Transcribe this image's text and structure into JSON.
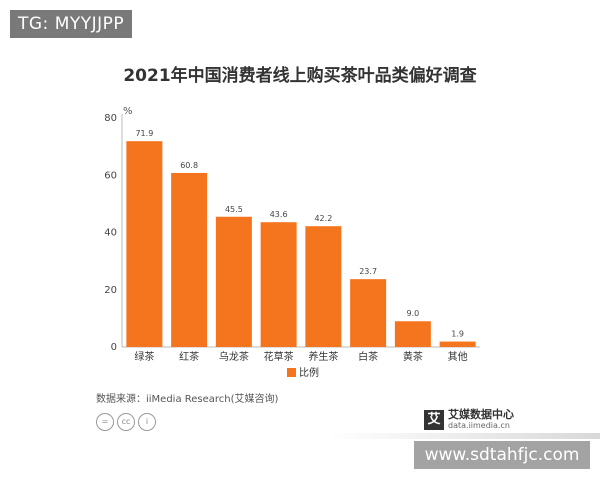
{
  "watermarks": {
    "top_left": "TG: MYYJJPP",
    "bottom_right": "www.sdtahfjc.com"
  },
  "chart_data": {
    "type": "bar",
    "title": "2021年中国消费者线上购买茶叶品类偏好调查",
    "ylabel": "%",
    "xlabel": "",
    "ylim": [
      0,
      80
    ],
    "yticks": [
      0,
      20,
      40,
      60,
      80
    ],
    "categories": [
      "绿茶",
      "红茶",
      "乌龙茶",
      "花草茶",
      "养生茶",
      "白茶",
      "黄茶",
      "其他"
    ],
    "series": [
      {
        "name": "比例",
        "values": [
          71.9,
          60.8,
          45.5,
          43.6,
          42.2,
          23.7,
          9.0,
          1.9
        ]
      }
    ],
    "value_labels": [
      "71.9",
      "60.8",
      "45.5",
      "43.6",
      "42.2",
      "23.7",
      "9.0",
      "1.9"
    ],
    "bar_color": "#F5751F",
    "grid": false,
    "legend_position": "bottom"
  },
  "footer": {
    "source": "数据来源：iiMedia Research(艾媒咨询)",
    "license_icons": [
      "=",
      "cc",
      "i"
    ],
    "brand_mark": "艾",
    "brand_name": "艾媒数据中心",
    "brand_url": "data.iimedia.cn"
  }
}
